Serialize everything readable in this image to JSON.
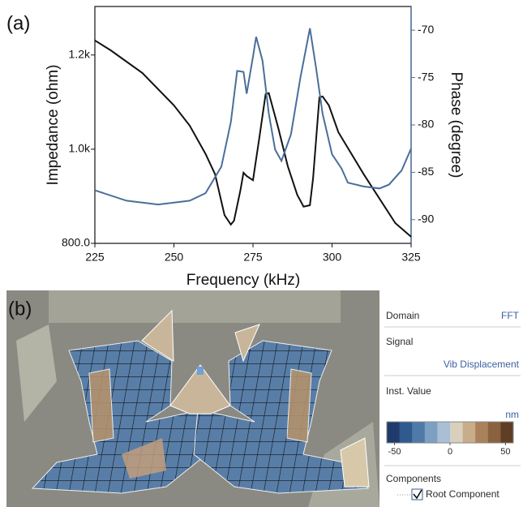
{
  "chart_data": {
    "type": "line",
    "panel_label": "(a)",
    "x_label": "Frequency (kHz)",
    "y_label": "Impedance (ohm)",
    "y2_label": "Phase (degree)",
    "xlim": [
      225,
      325
    ],
    "xticks": [
      225,
      250,
      275,
      300,
      325
    ],
    "ylim": [
      800,
      1303
    ],
    "yticks": [
      {
        "value": 800,
        "label": "800.0"
      },
      {
        "value": 1000,
        "label": "1.0k"
      },
      {
        "value": 1200,
        "label": "1.2k"
      }
    ],
    "y2lim": [
      -92.5,
      -67.5
    ],
    "y2ticks": [
      -70,
      -75,
      -80,
      -85,
      -90
    ],
    "y2_color": "#4a6e9a",
    "series": [
      {
        "color": "#111111",
        "x": [
          225,
          230,
          240,
          250,
          255,
          260,
          263,
          266,
          268,
          269,
          271,
          272,
          273,
          275,
          277,
          279,
          280,
          283,
          286,
          289,
          291,
          293,
          294,
          296,
          297,
          299,
          302,
          310,
          320,
          325
        ],
        "values": [
          1231,
          1210,
          1162,
          1093,
          1050,
          990,
          947,
          860,
          840,
          848,
          912,
          950,
          943,
          934,
          1024,
          1117,
          1119,
          1045,
          964,
          903,
          878,
          881,
          938,
          1110,
          1112,
          1093,
          1036,
          947,
          843,
          814
        ]
      },
      {
        "color": "#4a6e9a",
        "axis": "y2",
        "x": [
          225,
          235,
          245,
          255,
          260,
          265,
          268,
          270,
          272,
          273,
          275,
          276,
          278,
          280,
          282,
          284,
          287,
          290,
          293,
          295,
          297,
          300,
          303,
          305,
          310,
          315,
          318,
          322,
          325
        ],
        "values": [
          -86.9,
          -88.0,
          -88.4,
          -88.0,
          -87.2,
          -84.4,
          -79.7,
          -74.3,
          -74.4,
          -76.7,
          -72.8,
          -70.7,
          -73.2,
          -78.8,
          -82.6,
          -83.8,
          -81.0,
          -75.0,
          -69.8,
          -74.1,
          -78.8,
          -83.1,
          -84.6,
          -86.1,
          -86.5,
          -86.7,
          -86.3,
          -84.8,
          -82.5
        ]
      }
    ]
  },
  "panel_b": {
    "panel_label": "(b)",
    "domain_label": "Domain",
    "domain_value": "FFT",
    "signal_label": "Signal",
    "signal_value": "Vib Displacement",
    "inst_label": "Inst. Value",
    "unit": "nm",
    "colorbar": {
      "lim": [
        -57,
        57
      ],
      "ticks": [
        -50,
        0,
        50
      ],
      "colors": [
        "#1f3a6b",
        "#2f5a8e",
        "#4f7aa8",
        "#7d9fc2",
        "#a9bfd6",
        "#d9cfbd",
        "#c8ad8a",
        "#a9825b",
        "#8a6240",
        "#5e3e25"
      ]
    },
    "components_label": "Components",
    "root_component": "Root Component"
  }
}
